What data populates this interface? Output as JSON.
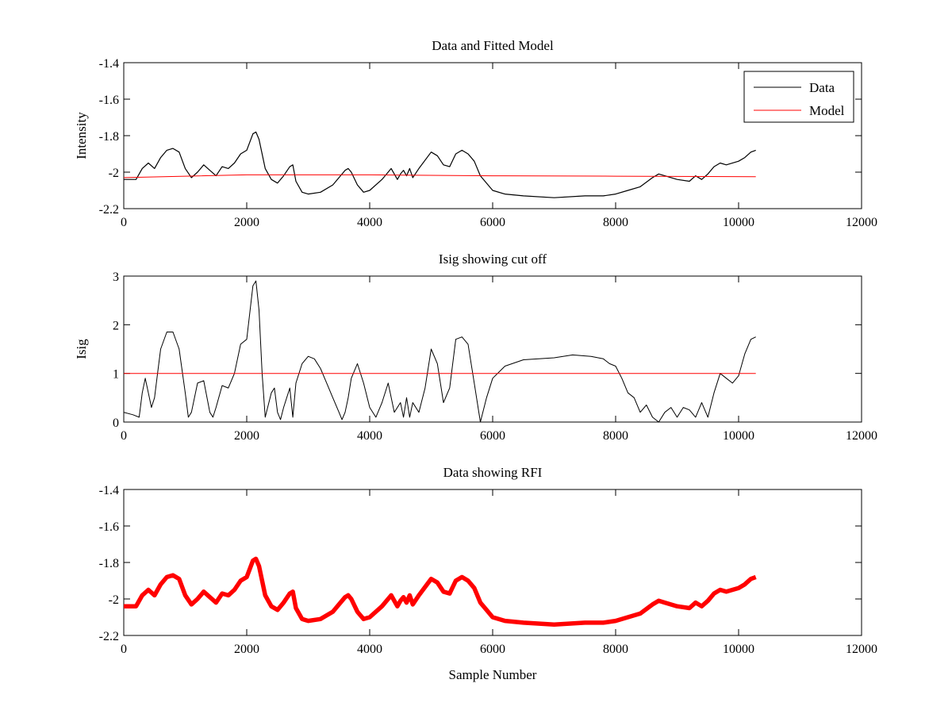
{
  "chart_data": [
    {
      "type": "line",
      "title": "Data and Fitted Model",
      "xlabel": "",
      "ylabel": "Intensity",
      "xlim": [
        0,
        12000
      ],
      "ylim": [
        -2.2,
        -1.4
      ],
      "xticks": [
        "0",
        "2000",
        "4000",
        "6000",
        "8000",
        "10000",
        "12000"
      ],
      "yticks": [
        "-1.4",
        "-1.6",
        "-1.8",
        "-2",
        "-2.2"
      ],
      "grid": false,
      "legend_position": "top-right",
      "series": [
        {
          "name": "Data",
          "color": "#000000",
          "x": [
            0,
            200,
            300,
            400,
            500,
            600,
            700,
            800,
            900,
            1000,
            1100,
            1200,
            1300,
            1400,
            1500,
            1600,
            1700,
            1800,
            1900,
            2000,
            2100,
            2150,
            2200,
            2300,
            2400,
            2500,
            2600,
            2700,
            2750,
            2800,
            2900,
            3000,
            3200,
            3400,
            3600,
            3650,
            3700,
            3800,
            3900,
            4000,
            4200,
            4350,
            4450,
            4500,
            4550,
            4600,
            4650,
            4700,
            4800,
            5000,
            5100,
            5200,
            5300,
            5400,
            5500,
            5600,
            5700,
            5800,
            6000,
            6200,
            6500,
            7000,
            7500,
            7800,
            8000,
            8200,
            8400,
            8600,
            8700,
            8800,
            9000,
            9200,
            9300,
            9400,
            9500,
            9600,
            9700,
            9800,
            10000,
            10100,
            10200,
            10280
          ],
          "values": [
            -2.04,
            -2.04,
            -1.98,
            -1.95,
            -1.98,
            -1.92,
            -1.88,
            -1.87,
            -1.89,
            -1.98,
            -2.03,
            -2.0,
            -1.96,
            -1.99,
            -2.02,
            -1.97,
            -1.98,
            -1.95,
            -1.9,
            -1.88,
            -1.79,
            -1.78,
            -1.82,
            -1.98,
            -2.04,
            -2.06,
            -2.02,
            -1.97,
            -1.96,
            -2.05,
            -2.11,
            -2.12,
            -2.11,
            -2.07,
            -1.99,
            -1.98,
            -2.0,
            -2.07,
            -2.11,
            -2.1,
            -2.04,
            -1.98,
            -2.04,
            -2.01,
            -1.99,
            -2.02,
            -1.98,
            -2.03,
            -1.98,
            -1.89,
            -1.91,
            -1.96,
            -1.97,
            -1.9,
            -1.88,
            -1.9,
            -1.94,
            -2.02,
            -2.1,
            -2.12,
            -2.13,
            -2.14,
            -2.13,
            -2.13,
            -2.12,
            -2.1,
            -2.08,
            -2.03,
            -2.01,
            -2.02,
            -2.04,
            -2.05,
            -2.02,
            -2.04,
            -2.01,
            -1.97,
            -1.95,
            -1.96,
            -1.94,
            -1.92,
            -1.89,
            -1.88
          ]
        },
        {
          "name": "Model",
          "color": "#ff0000",
          "x": [
            0,
            2000,
            4000,
            6000,
            8000,
            10280
          ],
          "values": [
            -2.03,
            -2.015,
            -2.015,
            -2.02,
            -2.022,
            -2.025
          ]
        }
      ]
    },
    {
      "type": "line",
      "title": "Isig showing cut off",
      "xlabel": "",
      "ylabel": "Isig",
      "xlim": [
        0,
        12000
      ],
      "ylim": [
        0,
        3
      ],
      "xticks": [
        "0",
        "2000",
        "4000",
        "6000",
        "8000",
        "10000",
        "12000"
      ],
      "yticks": [
        "3",
        "2",
        "1",
        "0"
      ],
      "grid": false,
      "series": [
        {
          "color": "#000000",
          "x": [
            0,
            150,
            250,
            300,
            350,
            400,
            450,
            500,
            550,
            600,
            700,
            800,
            900,
            1000,
            1050,
            1100,
            1200,
            1300,
            1400,
            1450,
            1500,
            1600,
            1700,
            1800,
            1900,
            2000,
            2100,
            2150,
            2200,
            2250,
            2300,
            2400,
            2450,
            2500,
            2550,
            2600,
            2700,
            2750,
            2800,
            2900,
            3000,
            3100,
            3200,
            3300,
            3400,
            3500,
            3550,
            3600,
            3650,
            3700,
            3800,
            3900,
            4000,
            4100,
            4200,
            4300,
            4400,
            4500,
            4550,
            4600,
            4650,
            4700,
            4800,
            4900,
            5000,
            5100,
            5200,
            5300,
            5400,
            5500,
            5600,
            5700,
            5800,
            5900,
            6000,
            6200,
            6500,
            7000,
            7300,
            7600,
            7800,
            7900,
            8000,
            8100,
            8200,
            8300,
            8400,
            8500,
            8600,
            8700,
            8800,
            8900,
            9000,
            9100,
            9200,
            9300,
            9400,
            9500,
            9600,
            9700,
            9800,
            9900,
            10000,
            10100,
            10200,
            10280
          ],
          "values": [
            0.2,
            0.15,
            0.1,
            0.6,
            0.9,
            0.6,
            0.3,
            0.5,
            1.0,
            1.5,
            1.85,
            1.85,
            1.5,
            0.6,
            0.1,
            0.2,
            0.8,
            0.85,
            0.2,
            0.1,
            0.3,
            0.75,
            0.7,
            1.0,
            1.6,
            1.7,
            2.8,
            2.9,
            2.3,
            1.0,
            0.1,
            0.6,
            0.7,
            0.2,
            0.05,
            0.3,
            0.7,
            0.1,
            0.8,
            1.2,
            1.35,
            1.3,
            1.1,
            0.8,
            0.5,
            0.2,
            0.05,
            0.2,
            0.5,
            0.9,
            1.2,
            0.8,
            0.3,
            0.1,
            0.4,
            0.8,
            0.2,
            0.4,
            0.1,
            0.5,
            0.1,
            0.4,
            0.2,
            0.7,
            1.5,
            1.2,
            0.4,
            0.7,
            1.7,
            1.75,
            1.6,
            0.8,
            0.0,
            0.5,
            0.9,
            1.15,
            1.28,
            1.32,
            1.38,
            1.35,
            1.3,
            1.2,
            1.15,
            0.9,
            0.6,
            0.5,
            0.2,
            0.35,
            0.1,
            0.0,
            0.2,
            0.3,
            0.1,
            0.3,
            0.25,
            0.1,
            0.4,
            0.1,
            0.6,
            1.0,
            0.9,
            0.8,
            0.95,
            1.4,
            1.7,
            1.75
          ]
        },
        {
          "color": "#ff0000",
          "x": [
            0,
            10280
          ],
          "values": [
            1.0,
            1.0
          ]
        }
      ]
    },
    {
      "type": "line",
      "title": "Data showing RFI",
      "xlabel": "Sample Number",
      "ylabel": "",
      "xlim": [
        0,
        12000
      ],
      "ylim": [
        -2.2,
        -1.4
      ],
      "xticks": [
        "0",
        "2000",
        "4000",
        "6000",
        "8000",
        "10000",
        "12000"
      ],
      "yticks": [
        "-1.4",
        "-1.6",
        "-1.8",
        "-2",
        "-2.2"
      ],
      "grid": false,
      "series": [
        {
          "color": "#ff0000",
          "x": [
            0,
            200,
            300,
            400,
            500,
            600,
            700,
            800,
            900,
            1000,
            1100,
            1200,
            1300,
            1400,
            1500,
            1600,
            1700,
            1800,
            1900,
            2000,
            2100,
            2150,
            2200,
            2300,
            2400,
            2500,
            2600,
            2700,
            2750,
            2800,
            2900,
            3000,
            3200,
            3400,
            3600,
            3650,
            3700,
            3800,
            3900,
            4000,
            4200,
            4350,
            4450,
            4500,
            4550,
            4600,
            4650,
            4700,
            4800,
            5000,
            5100,
            5200,
            5300,
            5400,
            5500,
            5600,
            5700,
            5800,
            6000,
            6200,
            6500,
            7000,
            7500,
            7800,
            8000,
            8200,
            8400,
            8600,
            8700,
            8800,
            9000,
            9200,
            9300,
            9400,
            9500,
            9600,
            9700,
            9800,
            10000,
            10100,
            10200,
            10280
          ],
          "values": [
            -2.04,
            -2.04,
            -1.98,
            -1.95,
            -1.98,
            -1.92,
            -1.88,
            -1.87,
            -1.89,
            -1.98,
            -2.03,
            -2.0,
            -1.96,
            -1.99,
            -2.02,
            -1.97,
            -1.98,
            -1.95,
            -1.9,
            -1.88,
            -1.79,
            -1.78,
            -1.82,
            -1.98,
            -2.04,
            -2.06,
            -2.02,
            -1.97,
            -1.96,
            -2.05,
            -2.11,
            -2.12,
            -2.11,
            -2.07,
            -1.99,
            -1.98,
            -2.0,
            -2.07,
            -2.11,
            -2.1,
            -2.04,
            -1.98,
            -2.04,
            -2.01,
            -1.99,
            -2.02,
            -1.98,
            -2.03,
            -1.98,
            -1.89,
            -1.91,
            -1.96,
            -1.97,
            -1.9,
            -1.88,
            -1.9,
            -1.94,
            -2.02,
            -2.1,
            -2.12,
            -2.13,
            -2.14,
            -2.13,
            -2.13,
            -2.12,
            -2.1,
            -2.08,
            -2.03,
            -2.01,
            -2.02,
            -2.04,
            -2.05,
            -2.02,
            -2.04,
            -2.01,
            -1.97,
            -1.95,
            -1.96,
            -1.94,
            -1.92,
            -1.89,
            -1.88
          ]
        }
      ]
    }
  ]
}
